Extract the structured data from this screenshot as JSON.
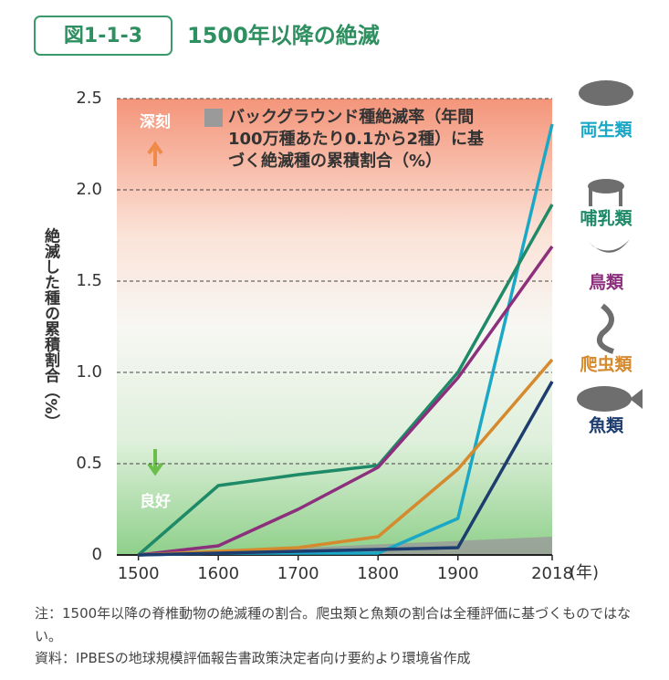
{
  "header": {
    "figure_number": "図1-1-3",
    "title": "1500年以降の絶滅"
  },
  "chart_data": {
    "type": "line",
    "y_label": "絶滅した種の累積割合（%）",
    "x_unit": "(年)",
    "annotations": {
      "top": "深刻",
      "bottom": "良好"
    },
    "x": [
      1500,
      1600,
      1700,
      1800,
      1900,
      2018
    ],
    "xlim": [
      1473,
      2018
    ],
    "xticks": [
      1500,
      1600,
      1700,
      1800,
      1900,
      2018
    ],
    "ylim": [
      0,
      2.5
    ],
    "yticks": [
      0,
      0.5,
      {
        "value": 1,
        "label": "1.0"
      },
      1.5,
      {
        "value": 2,
        "label": "2.0"
      },
      2.5
    ],
    "grid": true,
    "background": {
      "name": "バックグラウンド種絶滅率（年間100万種あたり0.1から2種）に基づく絶滅種の累積割合（%）",
      "color": "#9a9a9a",
      "x": [
        1500,
        2018
      ],
      "values": [
        0,
        0.1
      ]
    },
    "series": [
      {
        "name": "両生類",
        "color": "#1aa8c6",
        "values": [
          0,
          0.01,
          0.01,
          0.01,
          0.2,
          2.36
        ]
      },
      {
        "name": "哺乳類",
        "color": "#1f8a68",
        "values": [
          0,
          0.38,
          0.44,
          0.49,
          1.0,
          1.92
        ]
      },
      {
        "name": "鳥類",
        "color": "#8c2f7c",
        "values": [
          0,
          0.05,
          0.25,
          0.48,
          0.97,
          1.69
        ]
      },
      {
        "name": "爬虫類",
        "color": "#d58a2e",
        "values": [
          0,
          0.02,
          0.04,
          0.1,
          0.47,
          1.07
        ]
      },
      {
        "name": "魚類",
        "color": "#1c3d6e",
        "values": [
          0,
          0.01,
          0.02,
          0.03,
          0.04,
          0.95
        ]
      }
    ]
  },
  "notes": [
    "注：1500年以降の脊椎動物の絶滅種の割合。爬虫類と魚類の割合は全種評価に基づくものではない。",
    "資料：IPBESの地球規模評価報告書政策決定者向け要約より環境省作成"
  ]
}
